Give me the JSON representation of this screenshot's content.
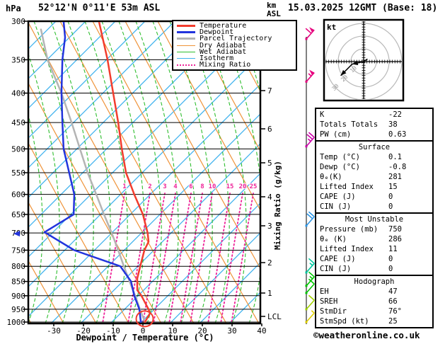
{
  "header": {
    "pressure_unit": "hPa",
    "station": "52°12'N 0°11'E 53m ASL",
    "datetime": "15.03.2025 12GMT (Base: 18)",
    "altitude_unit_line1": "km",
    "altitude_unit_line2": "ASL"
  },
  "legend": {
    "items": [
      {
        "label": "Temperature",
        "color": "#f23c2d",
        "width": 3,
        "dash": ""
      },
      {
        "label": "Dewpoint",
        "color": "#2234dd",
        "width": 3,
        "dash": ""
      },
      {
        "label": "Parcel Trajectory",
        "color": "#b4b4b4",
        "width": 3,
        "dash": ""
      },
      {
        "label": "Dry Adiabat",
        "color": "#ef9339",
        "width": 1.5,
        "dash": ""
      },
      {
        "label": "Wet Adiabat",
        "color": "#2fbe2f",
        "width": 1.5,
        "dash": ""
      },
      {
        "label": "Isotherm",
        "color": "#3fb2ee",
        "width": 1.5,
        "dash": ""
      },
      {
        "label": "Mixing Ratio",
        "color": "#ee2398",
        "width": 2,
        "dash": "2,3"
      }
    ]
  },
  "axes": {
    "pressure_ticks": [
      300,
      350,
      400,
      450,
      500,
      550,
      600,
      650,
      700,
      750,
      800,
      850,
      900,
      950,
      1000
    ],
    "temp_ticks": [
      -30,
      -20,
      -10,
      0,
      10,
      20,
      30,
      40
    ],
    "xlabel": "Dewpoint / Temperature (°C)",
    "mixing_axis_label": "Mixing Ratio (g/kg)",
    "mixing_ratio_labels": [
      {
        "value": "1",
        "x": 176
      },
      {
        "value": "2",
        "x": 212
      },
      {
        "value": "3",
        "x": 233
      },
      {
        "value": "4",
        "x": 248
      },
      {
        "value": "6",
        "x": 270
      },
      {
        "value": "8",
        "x": 286
      },
      {
        "value": "10",
        "x": 300
      },
      {
        "value": "15",
        "x": 325
      },
      {
        "value": "20",
        "x": 343
      },
      {
        "value": "25",
        "x": 358
      }
    ],
    "km_ticks": [
      {
        "km": "7",
        "y": 128
      },
      {
        "km": "6",
        "y": 182
      },
      {
        "km": "5",
        "y": 230
      },
      {
        "km": "4",
        "y": 278
      },
      {
        "km": "3",
        "y": 319
      },
      {
        "km": "2",
        "y": 371
      },
      {
        "km": "1",
        "y": 414
      }
    ],
    "lcl_label": "LCL",
    "lcl_y": 447
  },
  "chart_data": {
    "type": "line",
    "chart_kind": "skew-t log-p sounding",
    "pressure_axis_hPa": [
      300,
      1000
    ],
    "temp_axis_degC": [
      -30,
      40
    ],
    "note": "t values are positions read on the skewed temperature axis (°C at the 1000 hPa baseline); p in hPa",
    "series": [
      {
        "name": "Temperature",
        "color": "#f23c2d",
        "width": 2.5,
        "points": [
          [
            300,
            -14.8
          ],
          [
            350,
            -11.9
          ],
          [
            400,
            -10.0
          ],
          [
            450,
            -8.3
          ],
          [
            500,
            -7.1
          ],
          [
            550,
            -5.7
          ],
          [
            600,
            -2.9
          ],
          [
            650,
            0.0
          ],
          [
            700,
            1.6
          ],
          [
            725,
            1.9
          ],
          [
            750,
            0.5
          ],
          [
            800,
            -0.9
          ],
          [
            840,
            -1.9
          ],
          [
            880,
            -1.9
          ],
          [
            900,
            -0.5
          ],
          [
            950,
            1.9
          ],
          [
            965,
            2.4
          ],
          [
            1000,
            0.7
          ]
        ]
      },
      {
        "name": "Dewpoint",
        "color": "#2234dd",
        "width": 2.5,
        "points": [
          [
            300,
            -26.7
          ],
          [
            320,
            -26.2
          ],
          [
            350,
            -27.1
          ],
          [
            400,
            -27.4
          ],
          [
            450,
            -27.1
          ],
          [
            500,
            -26.7
          ],
          [
            550,
            -24.8
          ],
          [
            600,
            -23.1
          ],
          [
            650,
            -23.3
          ],
          [
            698,
            -33.1
          ],
          [
            750,
            -23.1
          ],
          [
            800,
            -7.6
          ],
          [
            850,
            -4.0
          ],
          [
            900,
            -2.9
          ],
          [
            950,
            -1.2
          ],
          [
            1000,
            -0.7
          ]
        ]
      },
      {
        "name": "Parcel Trajectory",
        "color": "#b4b4b4",
        "width": 2.5,
        "points": [
          [
            310,
            -34.3
          ],
          [
            350,
            -32.1
          ],
          [
            400,
            -27.4
          ],
          [
            450,
            -24.0
          ],
          [
            500,
            -21.2
          ],
          [
            550,
            -18.6
          ],
          [
            600,
            -15.7
          ],
          [
            650,
            -13.1
          ],
          [
            700,
            -10.5
          ],
          [
            750,
            -8.3
          ],
          [
            800,
            -6.4
          ],
          [
            850,
            -4.5
          ],
          [
            900,
            -2.6
          ],
          [
            950,
            -1.0
          ],
          [
            1000,
            0.7
          ]
        ]
      }
    ],
    "surface_parcel_marker": {
      "p": 987,
      "t": 0.6,
      "color": "#f23c2d"
    },
    "level_marker_700": {
      "p": 700,
      "color": "#2234dd"
    }
  },
  "wind_barbs": [
    {
      "p": 322,
      "color": "#e6007e",
      "pennants": 1,
      "full": 1,
      "half": 0
    },
    {
      "p": 382,
      "color": "#e6007e",
      "pennants": 1,
      "full": 0,
      "half": 1
    },
    {
      "p": 495,
      "color": "#cc00aa",
      "pennants": 0,
      "full": 2,
      "half": 1
    },
    {
      "p": 680,
      "color": "#2e96e6",
      "pennants": 0,
      "full": 2,
      "half": 0
    },
    {
      "p": 820,
      "color": "#00c8a0",
      "pennants": 0,
      "full": 1,
      "half": 1
    },
    {
      "p": 865,
      "color": "#00c800",
      "pennants": 0,
      "full": 1,
      "half": 1
    },
    {
      "p": 890,
      "color": "#00c800",
      "pennants": 0,
      "full": 1,
      "half": 0
    },
    {
      "p": 950,
      "color": "#a0d200",
      "pennants": 0,
      "full": 1,
      "half": 0
    },
    {
      "p": 1000,
      "color": "#e0d000",
      "pennants": 0,
      "full": 0,
      "half": 1
    }
  ],
  "hodograph": {
    "unit_label": "kt",
    "rings_kt": [
      10,
      20,
      30
    ],
    "trace_kt": [
      [
        3,
        -2
      ],
      [
        0,
        0
      ],
      [
        -9,
        2
      ],
      [
        -18,
        11
      ]
    ],
    "arrow_indices": [
      2,
      3
    ]
  },
  "table": {
    "sections": [
      {
        "title": "",
        "rows": [
          {
            "label": "K",
            "value": "-22"
          },
          {
            "label": "Totals Totals",
            "value": "38"
          },
          {
            "label": "PW (cm)",
            "value": "0.63"
          }
        ]
      },
      {
        "title": "Surface",
        "rows": [
          {
            "label": "Temp (°C)",
            "value": "0.1"
          },
          {
            "label": "Dewp (°C)",
            "value": "-0.8"
          },
          {
            "label": "θₑ(K)",
            "value": "281"
          },
          {
            "label": "Lifted Index",
            "value": "15"
          },
          {
            "label": "CAPE (J)",
            "value": "0"
          },
          {
            "label": "CIN (J)",
            "value": "0"
          }
        ]
      },
      {
        "title": "Most Unstable",
        "rows": [
          {
            "label": "Pressure (mb)",
            "value": "750"
          },
          {
            "label": "θₑ (K)",
            "value": "286"
          },
          {
            "label": "Lifted Index",
            "value": "11"
          },
          {
            "label": "CAPE (J)",
            "value": "0"
          },
          {
            "label": "CIN (J)",
            "value": "0"
          }
        ]
      },
      {
        "title": "Hodograph",
        "rows": [
          {
            "label": "EH",
            "value": "47"
          },
          {
            "label": "SREH",
            "value": "66"
          },
          {
            "label": "StmDir",
            "value": "76°"
          },
          {
            "label": "StmSpd (kt)",
            "value": "25"
          }
        ]
      }
    ]
  },
  "footer": {
    "copyright": "©weatheronline.co.uk"
  }
}
